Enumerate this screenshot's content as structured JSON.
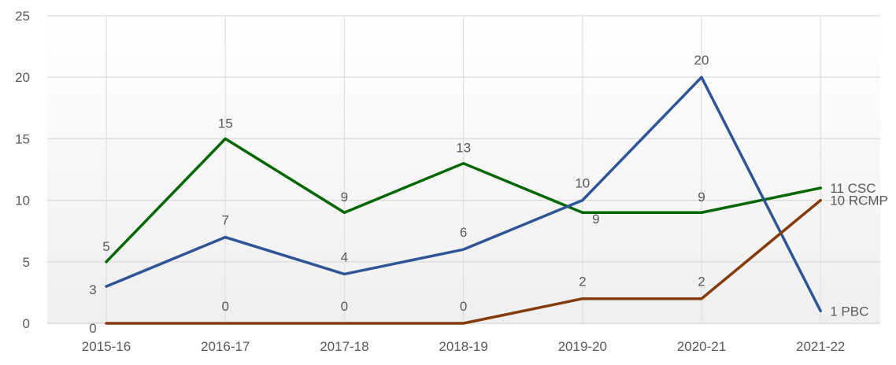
{
  "chart_data": {
    "type": "line",
    "categories": [
      "2015-16",
      "2016-17",
      "2017-18",
      "2018-19",
      "2019-20",
      "2020-21",
      "2021-22"
    ],
    "ylim": [
      0,
      25
    ],
    "yticks": [
      0,
      5,
      10,
      15,
      20,
      25
    ],
    "grid": true,
    "legend": "series names labeled at line ends",
    "series": [
      {
        "name": "CSC",
        "color": "#006600",
        "values": [
          5,
          15,
          9,
          13,
          9,
          9,
          11
        ]
      },
      {
        "name": "PBC",
        "color": "#2f5597",
        "values": [
          3,
          7,
          4,
          6,
          10,
          20,
          1
        ]
      },
      {
        "name": "RCMP",
        "color": "#843c0c",
        "values": [
          0,
          0,
          0,
          0,
          2,
          2,
          10
        ]
      }
    ]
  }
}
